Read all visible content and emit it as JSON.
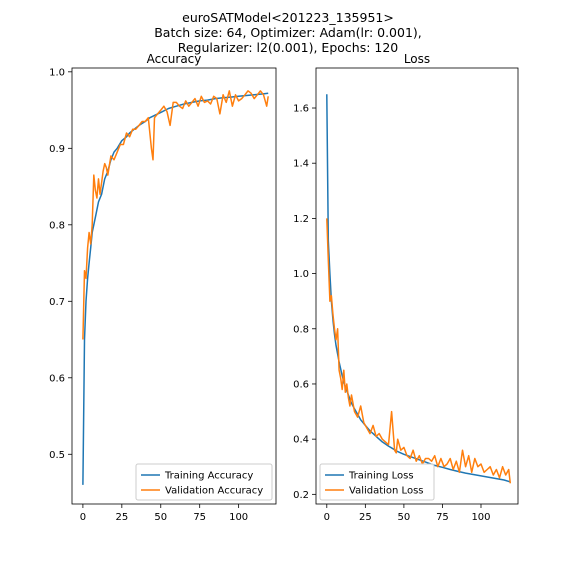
{
  "figure": {
    "title_lines": [
      "euroSATModel<201223_135951>",
      "Batch size: 64, Optimizer: Adam(lr: 0.001),",
      "Regularizer: l2(0.001), Epochs: 120"
    ]
  },
  "colors": {
    "training": "#1f77b4",
    "validation": "#ff7f0e"
  },
  "chart_data": [
    {
      "type": "line",
      "title": "Accuracy",
      "xlabel": "",
      "ylabel": "",
      "xlim": [
        -7,
        124
      ],
      "ylim": [
        0.435,
        1.005
      ],
      "xticks": [
        0,
        25,
        50,
        75,
        100
      ],
      "yticks": [
        0.5,
        0.6,
        0.7,
        0.8,
        0.9,
        1.0
      ],
      "ytick_labels": [
        "0.5",
        "0.6",
        "0.7",
        "0.8",
        "0.9",
        "1.0"
      ],
      "grid": false,
      "legend_position": "lower right",
      "series": [
        {
          "name": "Training Accuracy",
          "x": [
            0,
            1,
            2,
            3,
            4,
            5,
            6,
            8,
            10,
            12,
            14,
            16,
            18,
            20,
            22,
            25,
            28,
            30,
            33,
            36,
            40,
            43,
            46,
            50,
            55,
            60,
            65,
            70,
            75,
            80,
            85,
            90,
            95,
            100,
            105,
            110,
            115,
            119
          ],
          "y": [
            0.46,
            0.65,
            0.7,
            0.73,
            0.75,
            0.77,
            0.79,
            0.81,
            0.83,
            0.84,
            0.86,
            0.87,
            0.885,
            0.895,
            0.9,
            0.91,
            0.915,
            0.92,
            0.925,
            0.93,
            0.935,
            0.94,
            0.943,
            0.947,
            0.952,
            0.955,
            0.958,
            0.96,
            0.962,
            0.963,
            0.965,
            0.966,
            0.967,
            0.968,
            0.969,
            0.97,
            0.971,
            0.972
          ]
        },
        {
          "name": "Validation Accuracy",
          "x": [
            0,
            1,
            2,
            3,
            4,
            5,
            6,
            7,
            8,
            9,
            10,
            11,
            12,
            13,
            14,
            15,
            16,
            18,
            20,
            22,
            24,
            26,
            28,
            30,
            32,
            34,
            36,
            38,
            40,
            42,
            44,
            45,
            46,
            48,
            50,
            52,
            54,
            56,
            58,
            60,
            62,
            64,
            66,
            68,
            70,
            72,
            74,
            76,
            78,
            80,
            82,
            84,
            86,
            88,
            90,
            92,
            94,
            96,
            98,
            100,
            102,
            104,
            106,
            108,
            110,
            112,
            114,
            116,
            118,
            119
          ],
          "y": [
            0.65,
            0.74,
            0.73,
            0.77,
            0.79,
            0.775,
            0.8,
            0.865,
            0.845,
            0.835,
            0.86,
            0.84,
            0.855,
            0.87,
            0.88,
            0.875,
            0.865,
            0.89,
            0.885,
            0.895,
            0.905,
            0.905,
            0.92,
            0.915,
            0.925,
            0.925,
            0.93,
            0.935,
            0.935,
            0.94,
            0.9,
            0.885,
            0.94,
            0.945,
            0.95,
            0.955,
            0.948,
            0.93,
            0.96,
            0.96,
            0.955,
            0.952,
            0.962,
            0.955,
            0.96,
            0.965,
            0.955,
            0.968,
            0.96,
            0.962,
            0.958,
            0.968,
            0.965,
            0.945,
            0.97,
            0.96,
            0.975,
            0.955,
            0.97,
            0.962,
            0.965,
            0.97,
            0.975,
            0.972,
            0.965,
            0.97,
            0.975,
            0.97,
            0.955,
            0.968
          ]
        }
      ]
    },
    {
      "type": "line",
      "title": "Loss",
      "xlabel": "",
      "ylabel": "",
      "xlim": [
        -7,
        124
      ],
      "ylim": [
        0.165,
        1.745
      ],
      "xticks": [
        0,
        25,
        50,
        75,
        100
      ],
      "yticks": [
        0.2,
        0.4,
        0.6,
        0.8,
        1.0,
        1.2,
        1.4,
        1.6
      ],
      "ytick_labels": [
        "0.2",
        "0.4",
        "0.6",
        "0.8",
        "1.0",
        "1.2",
        "1.4",
        "1.6"
      ],
      "grid": false,
      "legend_position": "lower left",
      "series": [
        {
          "name": "Training Loss",
          "x": [
            0,
            1,
            2,
            3,
            4,
            5,
            6,
            8,
            10,
            12,
            14,
            16,
            18,
            20,
            22,
            25,
            28,
            30,
            33,
            36,
            40,
            43,
            46,
            50,
            55,
            60,
            65,
            70,
            75,
            80,
            85,
            90,
            95,
            100,
            105,
            110,
            115,
            119
          ],
          "y": [
            1.65,
            1.12,
            1.0,
            0.9,
            0.83,
            0.78,
            0.74,
            0.68,
            0.63,
            0.59,
            0.56,
            0.53,
            0.51,
            0.49,
            0.47,
            0.45,
            0.43,
            0.42,
            0.405,
            0.39,
            0.375,
            0.365,
            0.355,
            0.345,
            0.335,
            0.325,
            0.315,
            0.305,
            0.298,
            0.29,
            0.283,
            0.277,
            0.272,
            0.267,
            0.262,
            0.257,
            0.252,
            0.245
          ]
        },
        {
          "name": "Validation Loss",
          "x": [
            0,
            1,
            2,
            3,
            4,
            5,
            6,
            7,
            8,
            9,
            10,
            11,
            12,
            13,
            14,
            15,
            16,
            18,
            20,
            22,
            24,
            26,
            28,
            30,
            32,
            34,
            36,
            38,
            40,
            42,
            44,
            45,
            46,
            48,
            50,
            52,
            54,
            56,
            58,
            60,
            62,
            64,
            66,
            68,
            70,
            72,
            74,
            76,
            78,
            80,
            82,
            84,
            86,
            88,
            90,
            92,
            94,
            96,
            98,
            100,
            102,
            104,
            106,
            108,
            110,
            112,
            114,
            116,
            118,
            119
          ],
          "y": [
            1.2,
            1.05,
            0.9,
            0.92,
            0.85,
            0.8,
            0.76,
            0.8,
            0.65,
            0.62,
            0.58,
            0.65,
            0.57,
            0.6,
            0.55,
            0.52,
            0.56,
            0.5,
            0.48,
            0.52,
            0.46,
            0.44,
            0.42,
            0.45,
            0.41,
            0.42,
            0.4,
            0.39,
            0.38,
            0.5,
            0.36,
            0.35,
            0.4,
            0.36,
            0.37,
            0.34,
            0.33,
            0.36,
            0.32,
            0.34,
            0.31,
            0.33,
            0.33,
            0.32,
            0.34,
            0.3,
            0.33,
            0.3,
            0.31,
            0.33,
            0.29,
            0.32,
            0.28,
            0.36,
            0.3,
            0.34,
            0.28,
            0.33,
            0.3,
            0.31,
            0.28,
            0.29,
            0.3,
            0.27,
            0.29,
            0.26,
            0.3,
            0.27,
            0.29,
            0.24
          ]
        }
      ]
    }
  ]
}
